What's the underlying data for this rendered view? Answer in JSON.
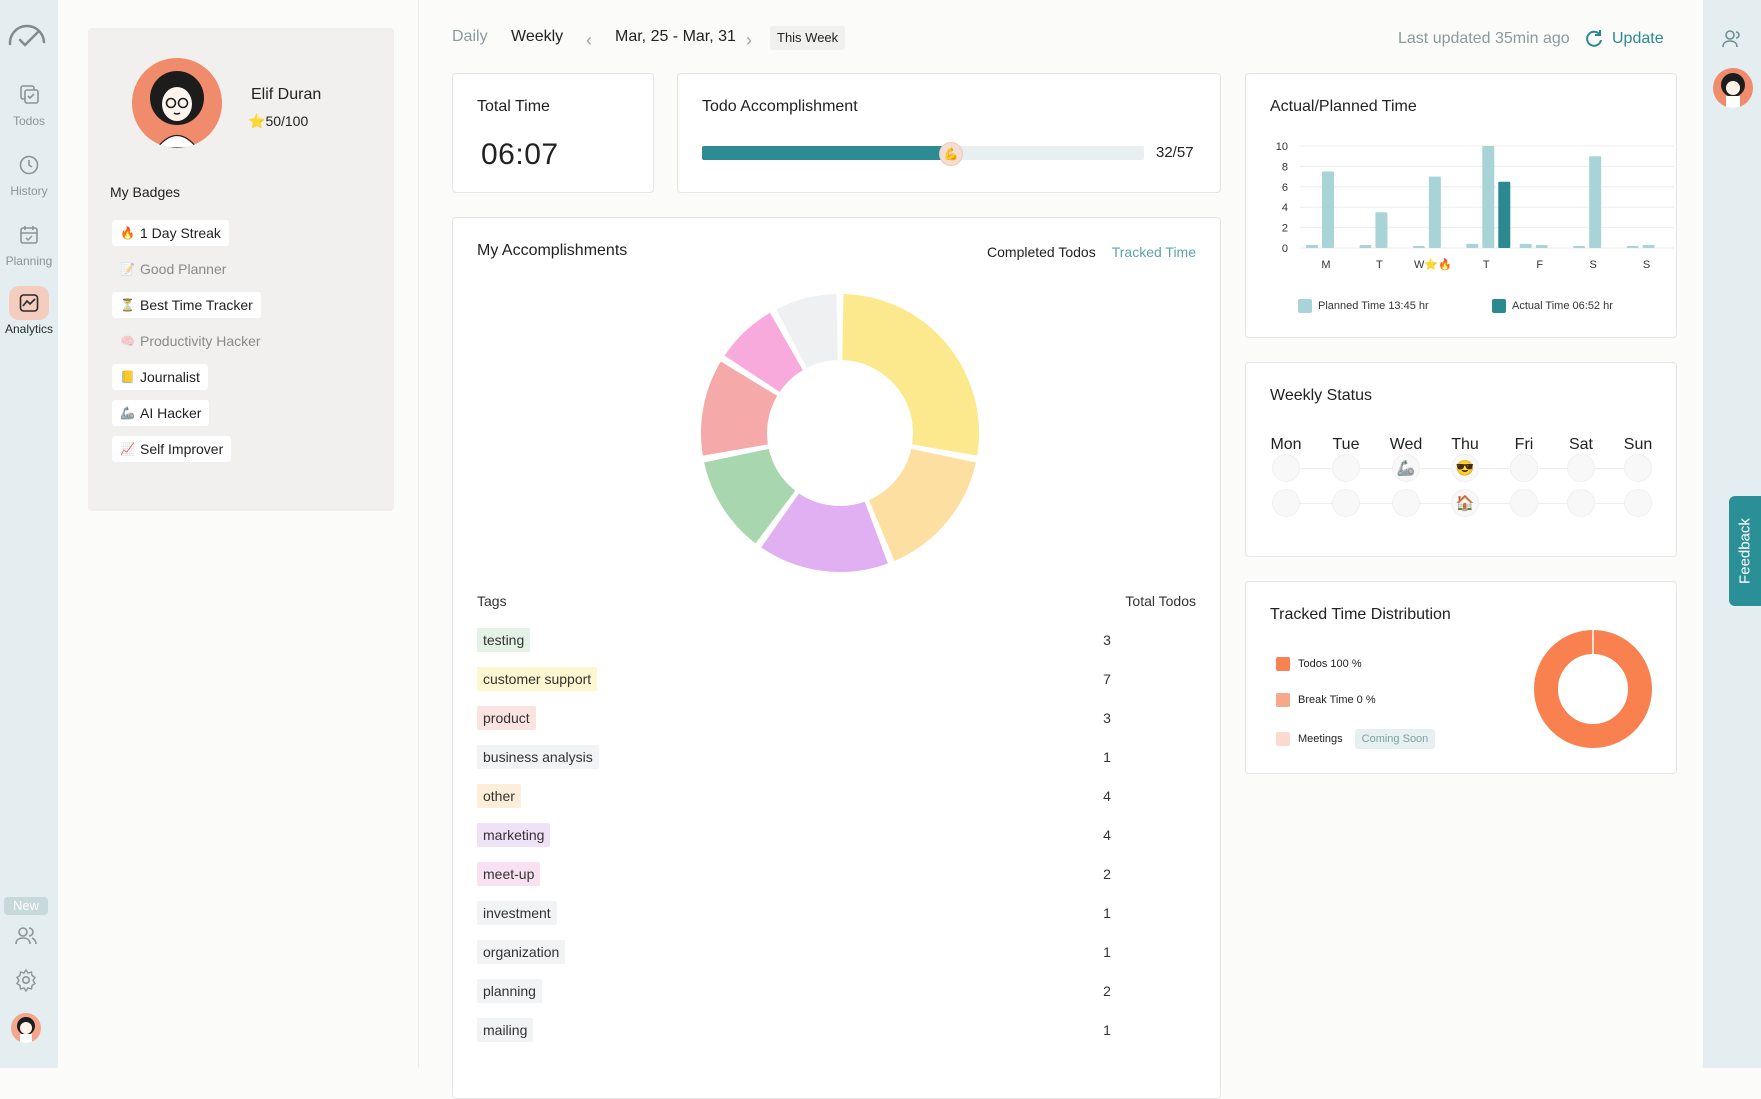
{
  "nav": {
    "items": [
      {
        "label": "Todos",
        "icon": "todos-icon"
      },
      {
        "label": "History",
        "icon": "history-icon"
      },
      {
        "label": "Planning",
        "icon": "planning-icon"
      },
      {
        "label": "Analytics",
        "icon": "analytics-icon",
        "active": true
      }
    ],
    "new_badge": "New"
  },
  "profile": {
    "name": "Elif Duran",
    "score": "50/100",
    "badges_title": "My Badges",
    "badges": [
      {
        "label": "1 Day Streak",
        "emoji": "🔥",
        "earned": true
      },
      {
        "label": "Good Planner",
        "emoji": "📝",
        "earned": false
      },
      {
        "label": "Best Time Tracker",
        "emoji": "⏳",
        "earned": true
      },
      {
        "label": "Productivity Hacker",
        "emoji": "🧠",
        "earned": false
      },
      {
        "label": "Journalist",
        "emoji": "📒",
        "earned": true
      },
      {
        "label": "AI Hacker",
        "emoji": "🦾",
        "earned": true
      },
      {
        "label": "Self Improver",
        "emoji": "📈",
        "earned": true
      }
    ]
  },
  "topbar": {
    "daily": "Daily",
    "weekly": "Weekly",
    "range": "Mar, 25 - Mar, 31",
    "this_week": "This Week",
    "last_updated": "Last updated 35min ago",
    "update": "Update"
  },
  "total_time": {
    "title": "Total Time",
    "value": "06:07"
  },
  "todo_acc": {
    "title": "Todo Accomplishment",
    "done": 32,
    "total": 57,
    "label": "32/57"
  },
  "accomplishments": {
    "title": "My Accomplishments",
    "tab_completed": "Completed Todos",
    "tab_tracked": "Tracked Time",
    "tags_header": "Tags",
    "todos_header": "Total Todos",
    "tags": [
      {
        "name": "testing",
        "count": "3",
        "color": "#e3f1e6"
      },
      {
        "name": "customer support",
        "count": "7",
        "color": "#fdf6cf"
      },
      {
        "name": "product",
        "count": "3",
        "color": "#fbe3e1"
      },
      {
        "name": "business analysis",
        "count": "1",
        "color": "#f2f3f4"
      },
      {
        "name": "other",
        "count": "4",
        "color": "#fdeed9"
      },
      {
        "name": "marketing",
        "count": "4",
        "color": "#efe2f7"
      },
      {
        "name": "meet-up",
        "count": "2",
        "color": "#f8e2f1"
      },
      {
        "name": "investment",
        "count": "1",
        "color": "#f2f3f4"
      },
      {
        "name": "organization",
        "count": "1",
        "color": "#f2f3f4"
      },
      {
        "name": "planning",
        "count": "2",
        "color": "#f2f3f4"
      },
      {
        "name": "mailing",
        "count": "1",
        "color": "#f2f3f4"
      }
    ]
  },
  "donut_data": {
    "segments": [
      {
        "value": 7,
        "color": "#fce98d"
      },
      {
        "value": 4,
        "color": "#fde0a1"
      },
      {
        "value": 4,
        "color": "#e1b0f2"
      },
      {
        "value": 3,
        "color": "#a7d6af"
      },
      {
        "value": 3,
        "color": "#f5a9a8"
      },
      {
        "value": 2,
        "color": "#f9aadc"
      },
      {
        "value": 2,
        "color": "#eef0f2"
      }
    ]
  },
  "chart_data": {
    "type": "bar",
    "title": "Actual/Planned Time",
    "categories": [
      "M",
      "T",
      "W",
      "T",
      "F",
      "S",
      "S"
    ],
    "category_marks": [
      "",
      "",
      "⭐🔥",
      "",
      "",
      "",
      ""
    ],
    "series": [
      {
        "name": "Planned Time 13:45 hr",
        "color": "#a9d4d7",
        "values": [
          0.3,
          0.3,
          0.2,
          0.4,
          0.4,
          0.2,
          0.2
        ]
      },
      {
        "name": "Planned Time 13:45 hr",
        "color": "#a9d4d7",
        "values": [
          7.5,
          3.5,
          7,
          10,
          0.3,
          9,
          0.3
        ]
      },
      {
        "name": "Actual Time 06:52 hr",
        "color": "#2b8a91",
        "values": [
          0,
          0,
          0,
          6.5,
          0,
          0,
          0
        ]
      }
    ],
    "ylim": [
      0,
      10
    ],
    "yticks": [
      0,
      2,
      4,
      6,
      8,
      10
    ],
    "legend": [
      {
        "label": "Planned Time 13:45 hr",
        "color": "#a9d4d7"
      },
      {
        "label": "Actual Time 06:52 hr",
        "color": "#2b8a91"
      }
    ]
  },
  "weekly_status": {
    "title": "Weekly Status",
    "days": [
      "Mon",
      "Tue",
      "Wed",
      "Thu",
      "Fri",
      "Sat",
      "Sun"
    ],
    "row1": [
      "",
      "",
      "🦾",
      "😎",
      "",
      "",
      ""
    ],
    "row2": [
      "",
      "",
      "",
      "🏠",
      "",
      "",
      ""
    ]
  },
  "ttd": {
    "title": "Tracked Time Distribution",
    "legend": [
      {
        "label": "Todos 100 %",
        "color": "#f8814f"
      },
      {
        "label": "Break Time 0 %",
        "color": "#f6a88b"
      },
      {
        "label": "Meetings",
        "color": "#fbd9ce"
      }
    ],
    "coming_soon": "Coming Soon",
    "todos_percent": 100
  },
  "feedback": "Feedback"
}
